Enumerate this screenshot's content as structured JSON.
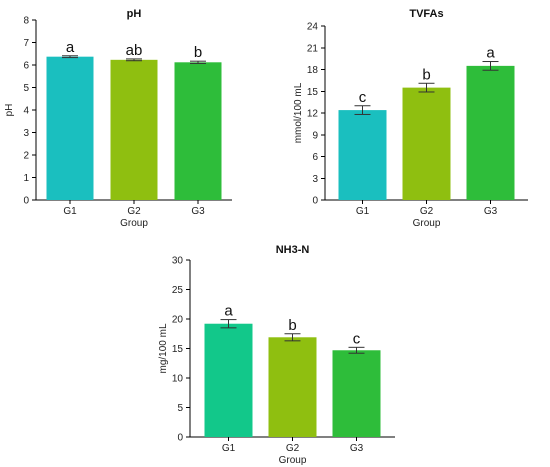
{
  "chart_data": [
    {
      "type": "bar",
      "title": "pH",
      "xlabel": "Group",
      "ylabel": "pH",
      "categories": [
        "G1",
        "G2",
        "G3"
      ],
      "values": [
        6.37,
        6.23,
        6.12
      ],
      "errors": [
        0.04,
        0.04,
        0.05
      ],
      "sig_letters": [
        "a",
        "ab",
        "b"
      ],
      "colors": [
        "#1abfbf",
        "#8fbf10",
        "#2ebd3a"
      ],
      "ylim": [
        0,
        8
      ],
      "yticks": [
        0,
        1,
        2,
        3,
        4,
        5,
        6,
        7,
        8
      ]
    },
    {
      "type": "bar",
      "title": "TVFAs",
      "xlabel": "Group",
      "ylabel": "mmol/100 mL",
      "categories": [
        "G1",
        "G2",
        "G3"
      ],
      "values": [
        12.4,
        15.5,
        18.5
      ],
      "errors": [
        0.6,
        0.6,
        0.6
      ],
      "sig_letters": [
        "c",
        "b",
        "a"
      ],
      "colors": [
        "#1abfbf",
        "#8fbf10",
        "#2ebd3a"
      ],
      "ylim": [
        0,
        24
      ],
      "yticks": [
        0,
        3,
        6,
        9,
        12,
        15,
        18,
        21,
        24
      ]
    },
    {
      "type": "bar",
      "title": "NH3-N",
      "xlabel": "Group",
      "ylabel": "mg/100 mL",
      "categories": [
        "G1",
        "G2",
        "G3"
      ],
      "values": [
        19.2,
        16.9,
        14.7
      ],
      "errors": [
        0.7,
        0.6,
        0.5
      ],
      "sig_letters": [
        "a",
        "b",
        "c"
      ],
      "colors": [
        "#12c88a",
        "#8fbf10",
        "#2ebd3a"
      ],
      "ylim": [
        0,
        30
      ],
      "yticks": [
        0,
        5,
        10,
        15,
        20,
        25,
        30
      ]
    }
  ]
}
